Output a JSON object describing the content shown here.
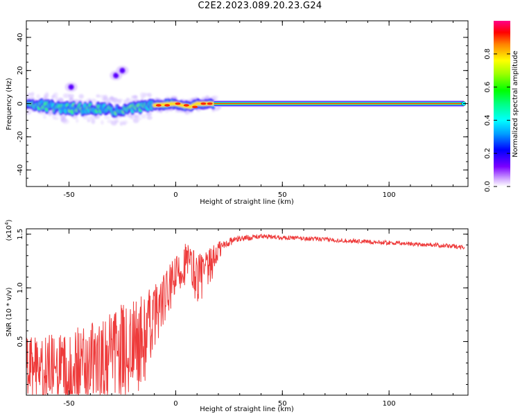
{
  "title": "C2E2.2023.089.20.23.G24",
  "colors": {
    "snr_line": "#ee3b3b",
    "axis": "#000000",
    "background": "#ffffff"
  },
  "chart_data": [
    {
      "type": "heatmap",
      "title": "C2E2.2023.089.20.23.G24",
      "xlabel": "Height of straight line (km)",
      "ylabel": "Frequency (Hz)",
      "xlim": [
        -70,
        137
      ],
      "ylim": [
        -50,
        50
      ],
      "x_ticks": [
        -50,
        0,
        50,
        100
      ],
      "y_ticks": [
        -40,
        -20,
        0,
        20,
        40
      ],
      "colorbar": {
        "label": "Normalized spectral amplitude",
        "range": [
          0.0,
          1.0
        ],
        "ticks": [
          0.0,
          0.2,
          0.4,
          0.6,
          0.8
        ],
        "tick_labels": [
          "0.0",
          "0.2",
          "0.4",
          "0.6",
          "0.8"
        ],
        "colormap": "rainbow"
      },
      "ridge": [
        {
          "x": -70,
          "f": 1
        },
        {
          "x": -60,
          "f": -2
        },
        {
          "x": -50,
          "f": -3
        },
        {
          "x": -40,
          "f": -3
        },
        {
          "x": -30,
          "f": -4
        },
        {
          "x": -25,
          "f": -5
        },
        {
          "x": -20,
          "f": -3
        },
        {
          "x": -10,
          "f": -1
        },
        {
          "x": 0,
          "f": 0
        },
        {
          "x": 3,
          "f": -1
        },
        {
          "x": 7,
          "f": -2
        },
        {
          "x": 10,
          "f": 0
        },
        {
          "x": 18,
          "f": 0
        },
        {
          "x": 135,
          "f": 0
        }
      ],
      "stray_features": [
        {
          "x": -49,
          "f": 10
        },
        {
          "x": -28,
          "f": 17
        },
        {
          "x": -25,
          "f": 20
        }
      ]
    },
    {
      "type": "line",
      "xlabel": "Height of straight line (km)",
      "ylabel": "SNR (10 * v/v)",
      "y_scale_label": "(x10^4)",
      "y_scale_base": "(x10",
      "y_scale_exp": "4",
      "y_scale_close": ")",
      "xlim": [
        -70,
        137
      ],
      "ylim": [
        0,
        1.55
      ],
      "x_ticks": [
        -50,
        0,
        50,
        100
      ],
      "y_ticks": [
        0.5,
        1.0,
        1.5
      ],
      "y_tick_labels": [
        "0.5",
        "1.0",
        "1.5"
      ],
      "series": [
        {
          "name": "SNR",
          "trend_x": [
            -70,
            -65,
            -55,
            -45,
            -35,
            -25,
            -20,
            -15,
            -10,
            -5,
            0,
            5,
            10,
            15,
            20,
            25,
            30,
            40,
            50,
            70,
            100,
            120,
            135
          ],
          "trend_y": [
            0.25,
            0.25,
            0.22,
            0.25,
            0.3,
            0.4,
            0.45,
            0.5,
            0.75,
            0.9,
            1.1,
            1.25,
            1.1,
            1.15,
            1.35,
            1.43,
            1.46,
            1.48,
            1.47,
            1.45,
            1.42,
            1.4,
            1.38
          ],
          "noise_amplitude": [
            0.3,
            0.3,
            0.35,
            0.4,
            0.4,
            0.45,
            0.45,
            0.45,
            0.3,
            0.25,
            0.2,
            0.2,
            0.25,
            0.2,
            0.1,
            0.04,
            0.03,
            0.02,
            0.02,
            0.02,
            0.02,
            0.02,
            0.02
          ]
        }
      ]
    }
  ]
}
